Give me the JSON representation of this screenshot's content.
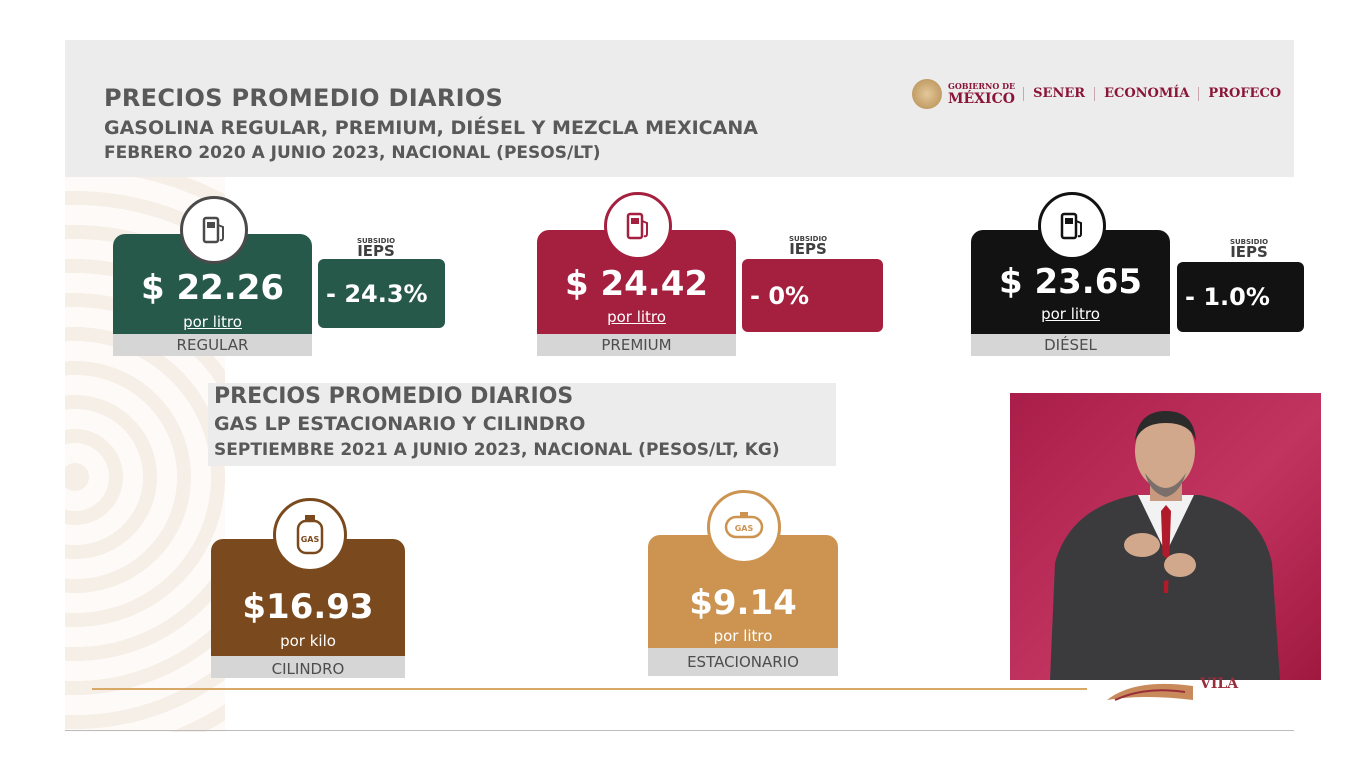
{
  "header": {
    "title": "PRECIOS PROMEDIO DIARIOS",
    "subtitle": "GASOLINA REGULAR, PREMIUM, DIÉSEL Y MEZCLA MEXICANA",
    "period": "FEBRERO 2020 A JUNIO 2023, NACIONAL (PESOS/LT)"
  },
  "logos": {
    "gobierno_small": "GOBIERNO DE",
    "gobierno_big": "MÉXICO",
    "items": [
      "SENER",
      "ECONOMÍA",
      "PROFECO"
    ]
  },
  "fuels": [
    {
      "price": "$ 22.26",
      "unit": "por litro",
      "label": "REGULAR",
      "ieps_small": "SUBSIDIO",
      "ieps_big": "IEPS",
      "ieps_value": "- 24.3%",
      "color": "#27594a",
      "icon": "fuel-pump-icon"
    },
    {
      "price": "$ 24.42",
      "unit": "por litro",
      "label": "PREMIUM",
      "ieps_small": "SUBSIDIO",
      "ieps_big": "IEPS",
      "ieps_value": "-   0%",
      "color": "#a5203f",
      "icon": "fuel-pump-icon"
    },
    {
      "price": "$ 23.65",
      "unit": "por litro",
      "label": "DIÉSEL",
      "ieps_small": "SUBSIDIO",
      "ieps_big": "IEPS",
      "ieps_value": "-  1.0%",
      "color": "#121212",
      "icon": "fuel-pump-icon"
    }
  ],
  "gas_section": {
    "title": "PRECIOS PROMEDIO DIARIOS",
    "subtitle": "GAS LP ESTACIONARIO Y CILINDRO",
    "period": "SEPTIEMBRE 2021 A JUNIO 2023, NACIONAL (PESOS/LT, KG)"
  },
  "gas": [
    {
      "price": "$16.93",
      "unit": "por kilo",
      "label": "CILINDRO",
      "icon_text": "GAS",
      "color": "#7a4a1e",
      "icon": "gas-cylinder-icon"
    },
    {
      "price": "$9.14",
      "unit": "por litro",
      "label": "ESTACIONARIO",
      "icon_text": "GAS",
      "color": "#cc9450",
      "icon": "gas-tank-icon"
    }
  ],
  "footer_logo": {
    "text": "VILA"
  }
}
